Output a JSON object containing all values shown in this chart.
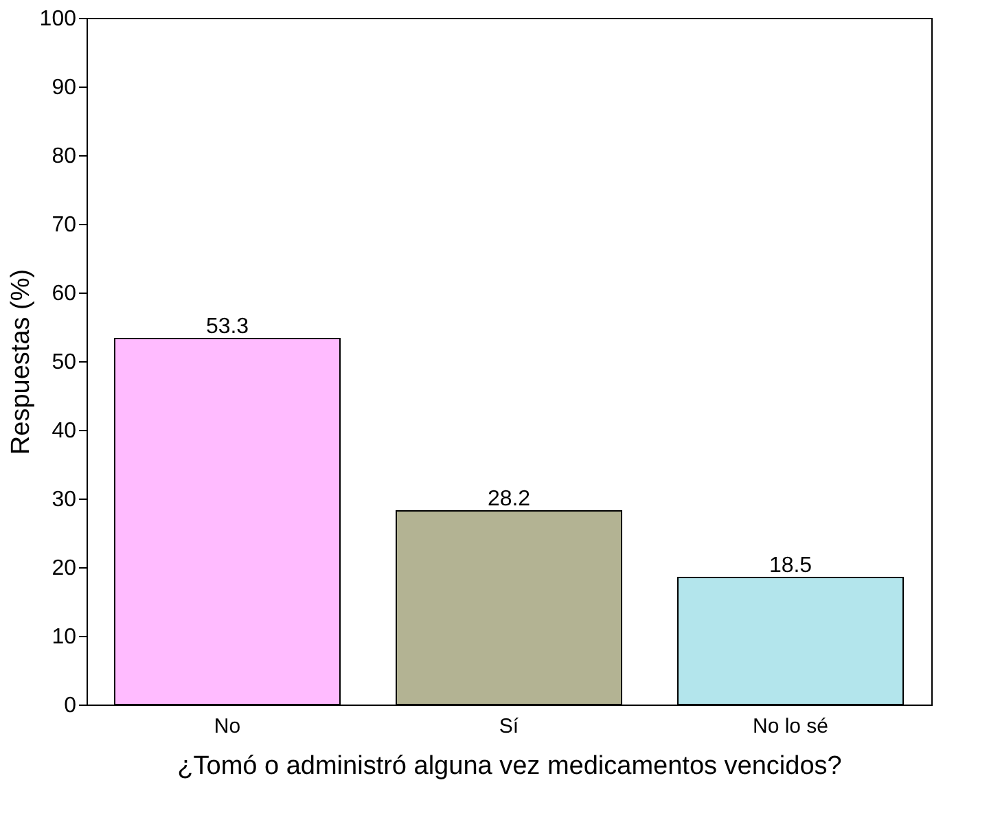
{
  "chart_data": {
    "type": "bar",
    "xlabel": "¿Tomó o administró alguna vez medicamentos vencidos?",
    "ylabel": "Respuestas (%)",
    "categories": [
      "No",
      "Sí",
      "No lo sé"
    ],
    "values": [
      53.3,
      28.2,
      18.5
    ],
    "colors": [
      "#ffbbff",
      "#b3b393",
      "#b3e5ec"
    ],
    "ylim": [
      0,
      100
    ],
    "yticks": [
      0,
      10,
      20,
      30,
      40,
      50,
      60,
      70,
      80,
      90,
      100
    ],
    "grid": false,
    "data_labels": true
  }
}
